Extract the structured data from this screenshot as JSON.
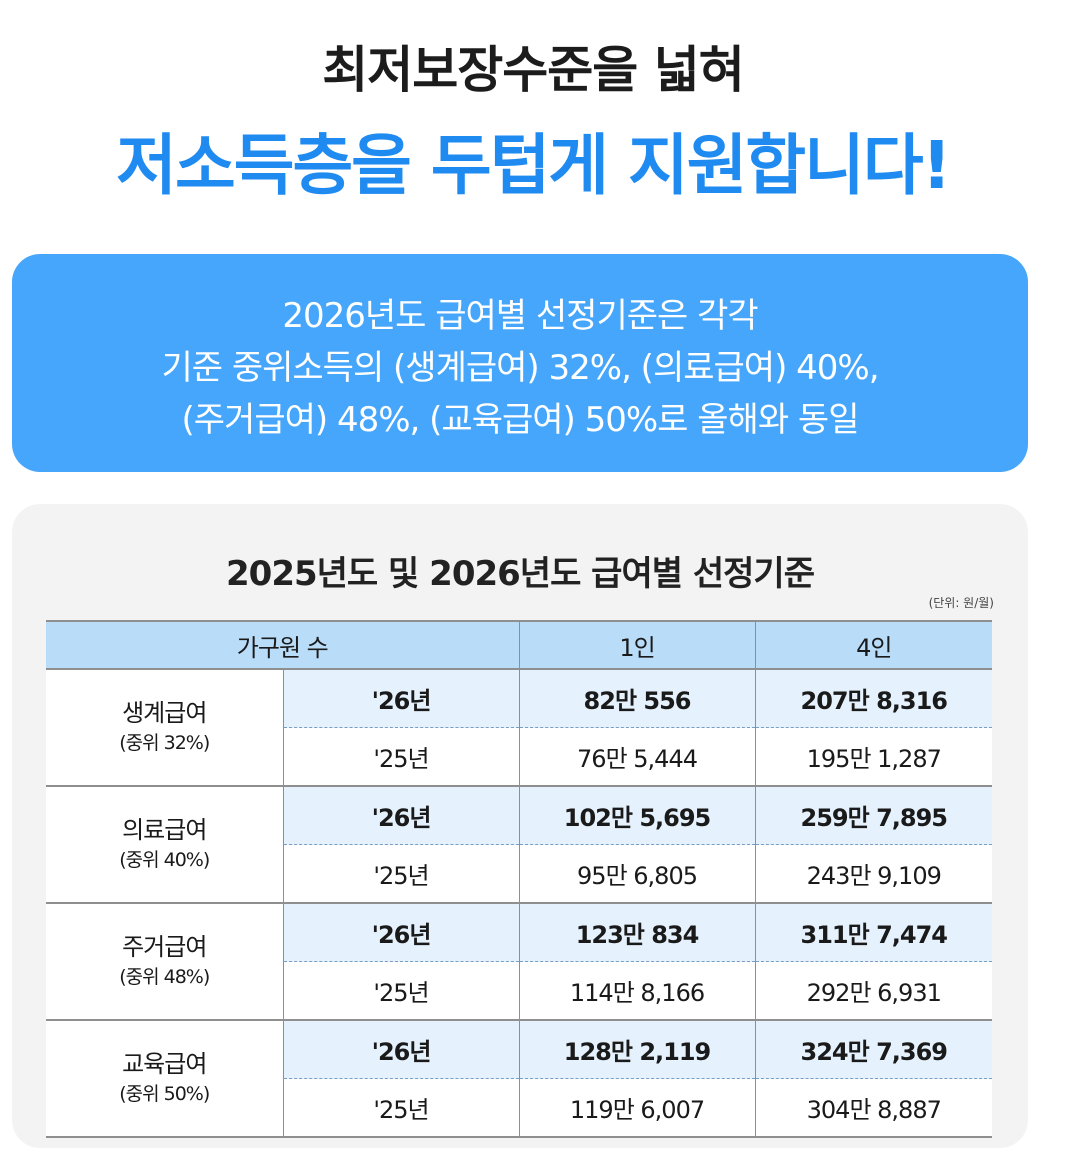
{
  "headline": {
    "line1": "최저보장수준을 넓혀",
    "line2": "저소득층을 두텁게 지원합니다!"
  },
  "info": {
    "lines": [
      "2026년도 급여별 선정기준은 각각",
      "기준 중위소득의 (생계급여) 32%, (의료급여) 40%,",
      "(주거급여) 48%, (교육급여) 50%로 올해와 동일"
    ]
  },
  "table": {
    "title": "2025년도 및 2026년도 급여별 선정기준",
    "unit": "(단위: 원/월)",
    "headers": [
      "가구원 수",
      "1인",
      "4인"
    ],
    "groups": [
      {
        "name": "생계급여",
        "sub": "(중위 32%)",
        "rows": [
          {
            "year": "'26년",
            "one": "82만 556",
            "four": "207만 8,316"
          },
          {
            "year": "'25년",
            "one": "76만 5,444",
            "four": "195만 1,287"
          }
        ]
      },
      {
        "name": "의료급여",
        "sub": "(중위 40%)",
        "rows": [
          {
            "year": "'26년",
            "one": "102만 5,695",
            "four": "259만 7,895"
          },
          {
            "year": "'25년",
            "one": "95만 6,805",
            "four": "243만 9,109"
          }
        ]
      },
      {
        "name": "주거급여",
        "sub": "(중위 48%)",
        "rows": [
          {
            "year": "'26년",
            "one": "123만 834",
            "four": "311만 7,474"
          },
          {
            "year": "'25년",
            "one": "114만 8,166",
            "four": "292만 6,931"
          }
        ]
      },
      {
        "name": "교육급여",
        "sub": "(중위 50%)",
        "rows": [
          {
            "year": "'26년",
            "one": "128만 2,119",
            "four": "324만 7,369"
          },
          {
            "year": "'25년",
            "one": "119만 6,007",
            "four": "304만 8,887"
          }
        ]
      }
    ]
  },
  "colors": {
    "accent_blue": "#1f8af0",
    "box_blue": "#46a6fb",
    "header_blue": "#b9dcf9",
    "row_2026": "#e5f2fd"
  }
}
